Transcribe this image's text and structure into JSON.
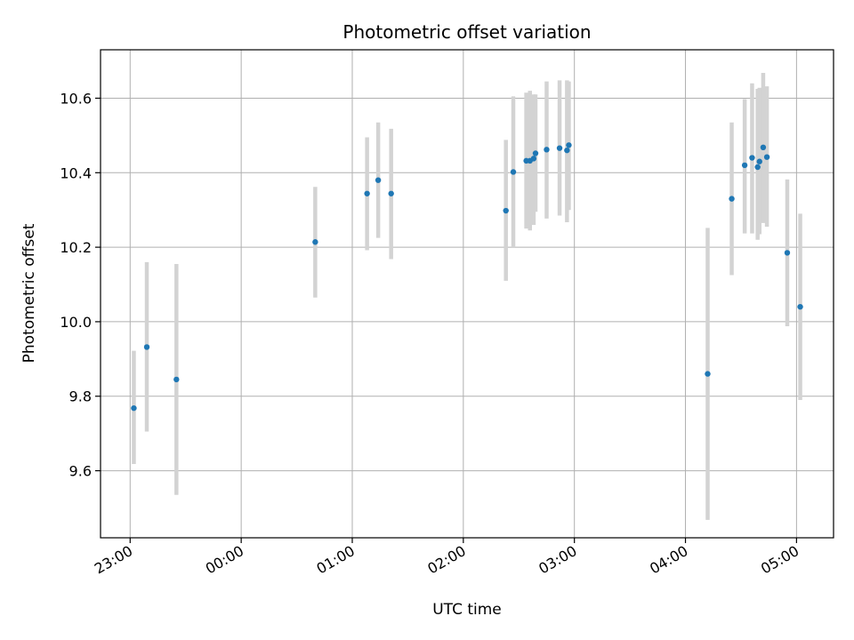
{
  "chart_data": {
    "type": "scatter",
    "title": "Photometric offset variation",
    "xlabel": "UTC time",
    "ylabel": "Photometric offset",
    "x_ticks": [
      "23:00",
      "00:00",
      "01:00",
      "02:00",
      "03:00",
      "04:00",
      "05:00"
    ],
    "x_tick_minutes": [
      0,
      60,
      120,
      180,
      240,
      300,
      360
    ],
    "xlim_minutes": [
      -16,
      380
    ],
    "y_ticks": [
      "9.6",
      "9.8",
      "10.0",
      "10.2",
      "10.4",
      "10.6"
    ],
    "y_tick_values": [
      9.6,
      9.8,
      10.0,
      10.2,
      10.4,
      10.6
    ],
    "ylim": [
      9.42,
      10.73
    ],
    "grid": true,
    "colors": {
      "point": "#1f77b4",
      "errorbar": "#d3d3d3",
      "grid": "#b0b0b0"
    },
    "points": [
      {
        "t": 2,
        "y": 9.768,
        "lo": 9.618,
        "hi": 9.922
      },
      {
        "t": 9,
        "y": 9.932,
        "lo": 9.705,
        "hi": 10.16
      },
      {
        "t": 25,
        "y": 9.845,
        "lo": 9.535,
        "hi": 10.155
      },
      {
        "t": 100,
        "y": 10.214,
        "lo": 10.065,
        "hi": 10.362
      },
      {
        "t": 128,
        "y": 10.344,
        "lo": 10.192,
        "hi": 10.495
      },
      {
        "t": 134,
        "y": 10.38,
        "lo": 10.225,
        "hi": 10.535
      },
      {
        "t": 141,
        "y": 10.344,
        "lo": 10.168,
        "hi": 10.518
      },
      {
        "t": 203,
        "y": 10.298,
        "lo": 10.11,
        "hi": 10.488
      },
      {
        "t": 207,
        "y": 10.402,
        "lo": 10.2,
        "hi": 10.605
      },
      {
        "t": 214,
        "y": 10.432,
        "lo": 10.25,
        "hi": 10.615
      },
      {
        "t": 216,
        "y": 10.432,
        "lo": 10.245,
        "hi": 10.62
      },
      {
        "t": 218,
        "y": 10.438,
        "lo": 10.26,
        "hi": 10.61
      },
      {
        "t": 219,
        "y": 10.452,
        "lo": 10.295,
        "hi": 10.61
      },
      {
        "t": 225,
        "y": 10.462,
        "lo": 10.277,
        "hi": 10.645
      },
      {
        "t": 232,
        "y": 10.466,
        "lo": 10.285,
        "hi": 10.648
      },
      {
        "t": 236,
        "y": 10.46,
        "lo": 10.267,
        "hi": 10.648
      },
      {
        "t": 237,
        "y": 10.474,
        "lo": 10.3,
        "hi": 10.645
      },
      {
        "t": 312,
        "y": 9.86,
        "lo": 9.468,
        "hi": 10.252
      },
      {
        "t": 325,
        "y": 10.33,
        "lo": 10.125,
        "hi": 10.535
      },
      {
        "t": 332,
        "y": 10.42,
        "lo": 10.237,
        "hi": 10.598
      },
      {
        "t": 336,
        "y": 10.44,
        "lo": 10.237,
        "hi": 10.64
      },
      {
        "t": 339,
        "y": 10.415,
        "lo": 10.22,
        "hi": 10.625
      },
      {
        "t": 340,
        "y": 10.43,
        "lo": 10.235,
        "hi": 10.628
      },
      {
        "t": 342,
        "y": 10.468,
        "lo": 10.265,
        "hi": 10.668
      },
      {
        "t": 344,
        "y": 10.442,
        "lo": 10.255,
        "hi": 10.632
      },
      {
        "t": 355,
        "y": 10.185,
        "lo": 9.988,
        "hi": 10.382
      },
      {
        "t": 362,
        "y": 10.04,
        "lo": 9.79,
        "hi": 10.29
      }
    ]
  }
}
